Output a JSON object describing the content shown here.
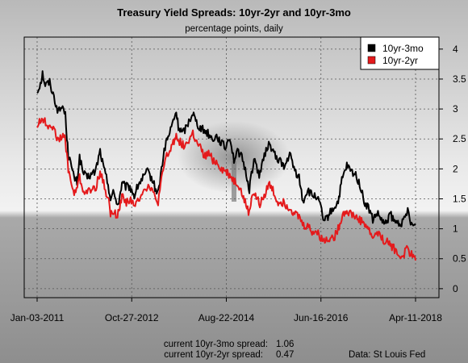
{
  "chart_data": {
    "type": "line",
    "title": "Treasury Yield Spreads: 10yr-2yr and 10yr-3mo",
    "subtitle": "percentage points, daily",
    "x_ticks": [
      "Jan-03-2011",
      "Oct-27-2012",
      "Aug-22-2014",
      "Jun-16-2016",
      "Apr-11-2018"
    ],
    "xlim": [
      "2011-01-03",
      "2018-04-11"
    ],
    "ylim": [
      -0.15,
      4.2
    ],
    "y_ticks": [
      "0",
      "0.5",
      "1",
      "1.5",
      "2",
      "2.5",
      "3",
      "3.5",
      "4"
    ],
    "y_axis_side": "right",
    "grid": true,
    "legend_position": "top-right",
    "series": [
      {
        "name": "10yr-3mo",
        "color": "#000000",
        "points": [
          [
            "2011-01-03",
            3.28
          ],
          [
            "2011-02-01",
            3.48
          ],
          [
            "2011-02-10",
            3.6
          ],
          [
            "2011-03-01",
            3.4
          ],
          [
            "2011-04-01",
            3.45
          ],
          [
            "2011-05-01",
            3.2
          ],
          [
            "2011-06-01",
            2.95
          ],
          [
            "2011-07-01",
            3.05
          ],
          [
            "2011-07-20",
            2.9
          ],
          [
            "2011-08-10",
            2.2
          ],
          [
            "2011-08-20",
            2.25
          ],
          [
            "2011-09-01",
            2.0
          ],
          [
            "2011-09-20",
            1.85
          ],
          [
            "2011-10-10",
            1.78
          ],
          [
            "2011-10-28",
            2.2
          ],
          [
            "2011-11-20",
            1.95
          ],
          [
            "2011-12-15",
            1.85
          ],
          [
            "2012-01-15",
            1.9
          ],
          [
            "2012-02-15",
            1.95
          ],
          [
            "2012-03-20",
            2.3
          ],
          [
            "2012-04-15",
            2.0
          ],
          [
            "2012-05-15",
            1.75
          ],
          [
            "2012-06-01",
            1.5
          ],
          [
            "2012-06-20",
            1.6
          ],
          [
            "2012-07-25",
            1.4
          ],
          [
            "2012-08-20",
            1.75
          ],
          [
            "2012-09-15",
            1.7
          ],
          [
            "2012-10-15",
            1.7
          ],
          [
            "2012-11-15",
            1.55
          ],
          [
            "2012-12-15",
            1.75
          ],
          [
            "2013-01-15",
            1.85
          ],
          [
            "2013-02-15",
            1.95
          ],
          [
            "2013-03-15",
            1.85
          ],
          [
            "2013-04-15",
            1.65
          ],
          [
            "2013-05-01",
            1.6
          ],
          [
            "2013-05-31",
            2.1
          ],
          [
            "2013-06-25",
            2.45
          ],
          [
            "2013-07-15",
            2.55
          ],
          [
            "2013-08-15",
            2.8
          ],
          [
            "2013-09-05",
            2.95
          ],
          [
            "2013-09-20",
            2.7
          ],
          [
            "2013-10-20",
            2.6
          ],
          [
            "2013-11-15",
            2.7
          ],
          [
            "2013-12-31",
            2.95
          ],
          [
            "2014-01-20",
            2.8
          ],
          [
            "2014-02-15",
            2.7
          ],
          [
            "2014-03-15",
            2.65
          ],
          [
            "2014-04-15",
            2.6
          ],
          [
            "2014-05-15",
            2.5
          ],
          [
            "2014-06-15",
            2.55
          ],
          [
            "2014-07-15",
            2.45
          ],
          [
            "2014-08-15",
            2.35
          ],
          [
            "2014-09-15",
            2.55
          ],
          [
            "2014-10-15",
            2.15
          ],
          [
            "2014-11-15",
            2.3
          ],
          [
            "2014-12-15",
            2.15
          ],
          [
            "2015-01-15",
            1.85
          ],
          [
            "2015-01-31",
            1.65
          ],
          [
            "2015-02-15",
            1.95
          ],
          [
            "2015-03-10",
            2.15
          ],
          [
            "2015-04-10",
            1.9
          ],
          [
            "2015-05-10",
            2.15
          ],
          [
            "2015-06-10",
            2.4
          ],
          [
            "2015-07-10",
            2.35
          ],
          [
            "2015-08-10",
            2.15
          ],
          [
            "2015-09-10",
            2.15
          ],
          [
            "2015-10-01",
            2.0
          ],
          [
            "2015-11-10",
            2.25
          ],
          [
            "2015-12-10",
            2.0
          ],
          [
            "2016-01-15",
            1.85
          ],
          [
            "2016-02-11",
            1.45
          ],
          [
            "2016-03-15",
            1.65
          ],
          [
            "2016-04-15",
            1.55
          ],
          [
            "2016-05-15",
            1.55
          ],
          [
            "2016-06-15",
            1.35
          ],
          [
            "2016-07-08",
            1.1
          ],
          [
            "2016-08-15",
            1.25
          ],
          [
            "2016-09-15",
            1.35
          ],
          [
            "2016-10-15",
            1.45
          ],
          [
            "2016-11-10",
            1.8
          ],
          [
            "2016-12-15",
            2.05
          ],
          [
            "2017-01-15",
            1.95
          ],
          [
            "2017-02-15",
            1.9
          ],
          [
            "2017-03-15",
            1.75
          ],
          [
            "2017-04-15",
            1.45
          ],
          [
            "2017-05-15",
            1.35
          ],
          [
            "2017-06-15",
            1.15
          ],
          [
            "2017-07-15",
            1.25
          ],
          [
            "2017-08-15",
            1.15
          ],
          [
            "2017-09-08",
            1.05
          ],
          [
            "2017-10-15",
            1.25
          ],
          [
            "2017-11-15",
            1.1
          ],
          [
            "2017-12-15",
            1.1
          ],
          [
            "2018-01-15",
            1.1
          ],
          [
            "2018-02-15",
            1.3
          ],
          [
            "2018-03-01",
            1.18
          ],
          [
            "2018-03-20",
            1.05
          ],
          [
            "2018-04-11",
            1.06
          ]
        ]
      },
      {
        "name": "10yr-2yr",
        "color": "#e41a1c",
        "points": [
          [
            "2011-01-03",
            2.72
          ],
          [
            "2011-02-10",
            2.85
          ],
          [
            "2011-03-15",
            2.72
          ],
          [
            "2011-04-15",
            2.75
          ],
          [
            "2011-05-15",
            2.55
          ],
          [
            "2011-06-15",
            2.5
          ],
          [
            "2011-07-15",
            2.55
          ],
          [
            "2011-08-10",
            2.0
          ],
          [
            "2011-09-01",
            1.75
          ],
          [
            "2011-09-20",
            1.55
          ],
          [
            "2011-10-28",
            1.85
          ],
          [
            "2011-11-20",
            1.65
          ],
          [
            "2011-12-20",
            1.6
          ],
          [
            "2012-01-20",
            1.65
          ],
          [
            "2012-02-20",
            1.7
          ],
          [
            "2012-03-20",
            1.95
          ],
          [
            "2012-04-20",
            1.7
          ],
          [
            "2012-05-20",
            1.45
          ],
          [
            "2012-06-01",
            1.25
          ],
          [
            "2012-07-25",
            1.25
          ],
          [
            "2012-08-20",
            1.55
          ],
          [
            "2012-09-20",
            1.45
          ],
          [
            "2012-10-20",
            1.5
          ],
          [
            "2012-11-15",
            1.35
          ],
          [
            "2012-12-15",
            1.5
          ],
          [
            "2013-01-15",
            1.65
          ],
          [
            "2013-02-15",
            1.7
          ],
          [
            "2013-03-15",
            1.7
          ],
          [
            "2013-04-15",
            1.45
          ],
          [
            "2013-05-01",
            1.45
          ],
          [
            "2013-05-31",
            1.9
          ],
          [
            "2013-06-25",
            2.2
          ],
          [
            "2013-07-15",
            2.25
          ],
          [
            "2013-08-15",
            2.45
          ],
          [
            "2013-09-05",
            2.55
          ],
          [
            "2013-10-15",
            2.4
          ],
          [
            "2013-11-15",
            2.4
          ],
          [
            "2013-12-31",
            2.6
          ],
          [
            "2014-01-20",
            2.45
          ],
          [
            "2014-02-20",
            2.35
          ],
          [
            "2014-03-20",
            2.2
          ],
          [
            "2014-04-20",
            2.25
          ],
          [
            "2014-05-20",
            2.15
          ],
          [
            "2014-06-20",
            2.1
          ],
          [
            "2014-07-20",
            2.0
          ],
          [
            "2014-08-20",
            1.95
          ],
          [
            "2014-09-15",
            1.9
          ],
          [
            "2014-10-15",
            1.8
          ],
          [
            "2014-11-15",
            1.75
          ],
          [
            "2014-12-15",
            1.55
          ],
          [
            "2015-01-31",
            1.25
          ],
          [
            "2015-02-20",
            1.6
          ],
          [
            "2015-03-15",
            1.55
          ],
          [
            "2015-04-15",
            1.4
          ],
          [
            "2015-05-15",
            1.55
          ],
          [
            "2015-06-15",
            1.75
          ],
          [
            "2015-07-15",
            1.65
          ],
          [
            "2015-08-15",
            1.45
          ],
          [
            "2015-09-15",
            1.45
          ],
          [
            "2015-10-15",
            1.4
          ],
          [
            "2015-11-15",
            1.35
          ],
          [
            "2015-12-15",
            1.25
          ],
          [
            "2016-01-15",
            1.2
          ],
          [
            "2016-02-15",
            1.05
          ],
          [
            "2016-03-15",
            1.05
          ],
          [
            "2016-04-15",
            0.95
          ],
          [
            "2016-05-15",
            0.95
          ],
          [
            "2016-06-15",
            0.85
          ],
          [
            "2016-07-08",
            0.8
          ],
          [
            "2016-08-15",
            0.85
          ],
          [
            "2016-09-15",
            0.85
          ],
          [
            "2016-10-15",
            1.0
          ],
          [
            "2016-11-15",
            1.25
          ],
          [
            "2016-12-15",
            1.3
          ],
          [
            "2017-01-15",
            1.25
          ],
          [
            "2017-02-15",
            1.2
          ],
          [
            "2017-03-15",
            1.15
          ],
          [
            "2017-04-15",
            1.1
          ],
          [
            "2017-05-15",
            1.0
          ],
          [
            "2017-06-15",
            0.85
          ],
          [
            "2017-07-15",
            0.95
          ],
          [
            "2017-08-15",
            0.85
          ],
          [
            "2017-09-08",
            0.8
          ],
          [
            "2017-10-15",
            0.75
          ],
          [
            "2017-11-15",
            0.65
          ],
          [
            "2017-12-15",
            0.55
          ],
          [
            "2018-01-15",
            0.55
          ],
          [
            "2018-02-15",
            0.7
          ],
          [
            "2018-03-01",
            0.6
          ],
          [
            "2018-03-20",
            0.55
          ],
          [
            "2018-04-11",
            0.47
          ]
        ]
      }
    ]
  },
  "footer": {
    "label_10yr_3mo": "current 10yr-3mo spread:",
    "value_10yr_3mo": "1.06",
    "label_10yr_2yr": "current 10yr-2yr spread:",
    "value_10yr_2yr": "0.47",
    "source": "Data: St Louis Fed"
  }
}
